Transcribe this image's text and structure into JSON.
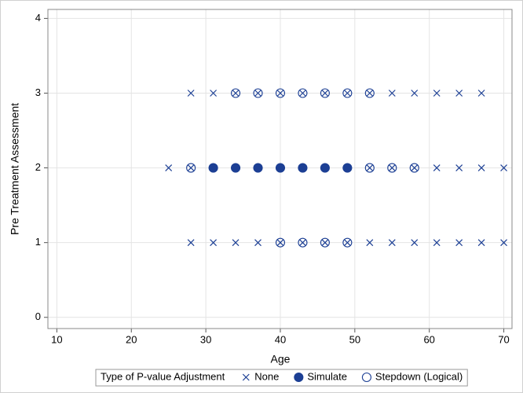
{
  "chart_data": {
    "type": "scatter",
    "x_label": "Age",
    "y_label": "Pre Treatment Assessment",
    "xlim": [
      8.8,
      71.1
    ],
    "ylim": [
      -0.15,
      4.12
    ],
    "xticks": [
      10,
      20,
      30,
      40,
      50,
      60,
      70
    ],
    "yticks": [
      0,
      1,
      2,
      3,
      4
    ],
    "grid": true,
    "legend_title": "Type of P-value Adjustment",
    "legend_position": "bottom",
    "series": [
      {
        "name": "None",
        "color": "#1c3f94",
        "marker": "x",
        "x": [
          28,
          31,
          34,
          37,
          40,
          43,
          46,
          49,
          52,
          55,
          58,
          61,
          64,
          67,
          25,
          28,
          31,
          34,
          37,
          40,
          43,
          46,
          49,
          52,
          55,
          58,
          61,
          64,
          67,
          70,
          28,
          31,
          34,
          37,
          40,
          43,
          46,
          49,
          52,
          55,
          58,
          61,
          64,
          67,
          70
        ],
        "values": [
          3,
          3,
          3,
          3,
          3,
          3,
          3,
          3,
          3,
          3,
          3,
          3,
          3,
          3,
          2,
          2,
          2,
          2,
          2,
          2,
          2,
          2,
          2,
          2,
          2,
          2,
          2,
          2,
          2,
          2,
          1,
          1,
          1,
          1,
          1,
          1,
          1,
          1,
          1,
          1,
          1,
          1,
          1,
          1,
          1
        ]
      },
      {
        "name": "Simulate",
        "color": "#1c3f94",
        "marker": "filled-circle",
        "x": [
          31,
          34,
          37,
          40,
          43,
          46,
          49
        ],
        "values": [
          2,
          2,
          2,
          2,
          2,
          2,
          2
        ]
      },
      {
        "name": "Stepdown (Logical)",
        "color": "#1c3f94",
        "marker": "circle",
        "x": [
          34,
          37,
          40,
          43,
          46,
          49,
          52,
          28,
          52,
          55,
          58,
          40,
          43,
          46,
          49
        ],
        "values": [
          3,
          3,
          3,
          3,
          3,
          3,
          3,
          2,
          2,
          2,
          2,
          1,
          1,
          1,
          1
        ]
      }
    ]
  }
}
